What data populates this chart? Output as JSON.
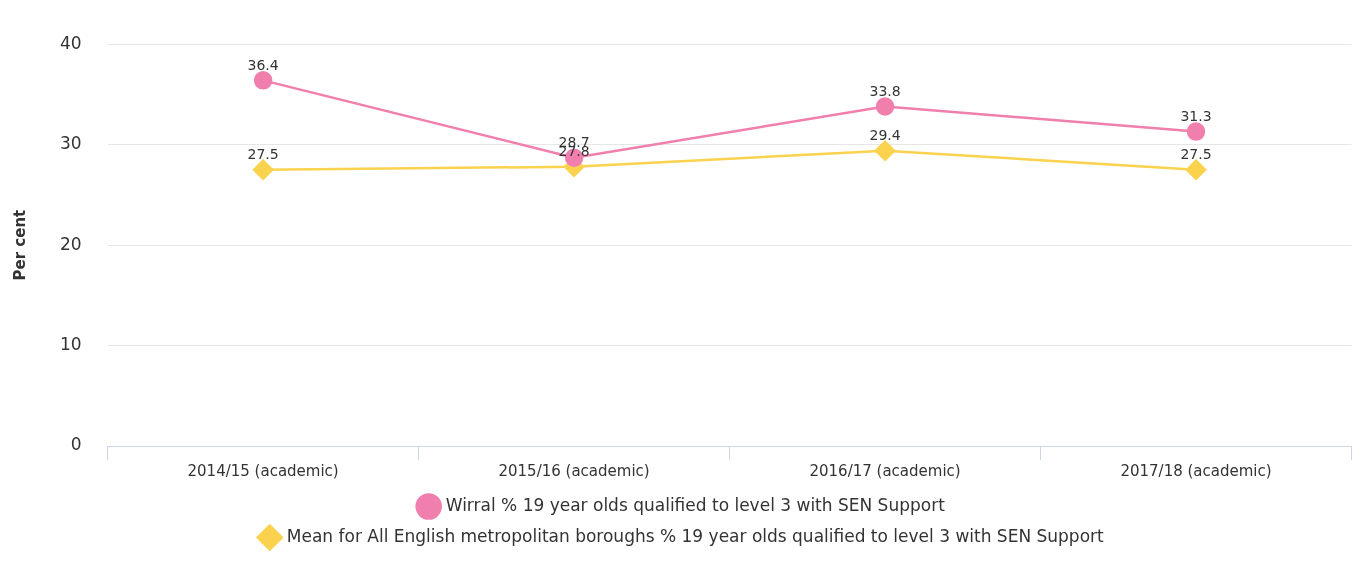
{
  "chart_data": {
    "type": "line",
    "ylabel": "Per cent",
    "categories": [
      "2014/15 (academic)",
      "2015/16 (academic)",
      "2016/17 (academic)",
      "2017/18 (academic)"
    ],
    "series": [
      {
        "name": "Wirral % 19 year olds qualified to level 3 with SEN Support",
        "color": "#f07fae",
        "marker": "circle",
        "values": [
          36.4,
          28.7,
          33.8,
          31.3
        ]
      },
      {
        "name": "Mean for All English metropolitan boroughs % 19 year olds qualified to level 3 with SEN Support",
        "color": "#fad24e",
        "marker": "diamond",
        "values": [
          27.5,
          27.8,
          29.4,
          27.5
        ]
      }
    ],
    "ylim": [
      0,
      40
    ],
    "yticks": [
      0,
      10,
      20,
      30,
      40
    ],
    "grid": "y",
    "legend": "bottom",
    "data_labels": true
  }
}
